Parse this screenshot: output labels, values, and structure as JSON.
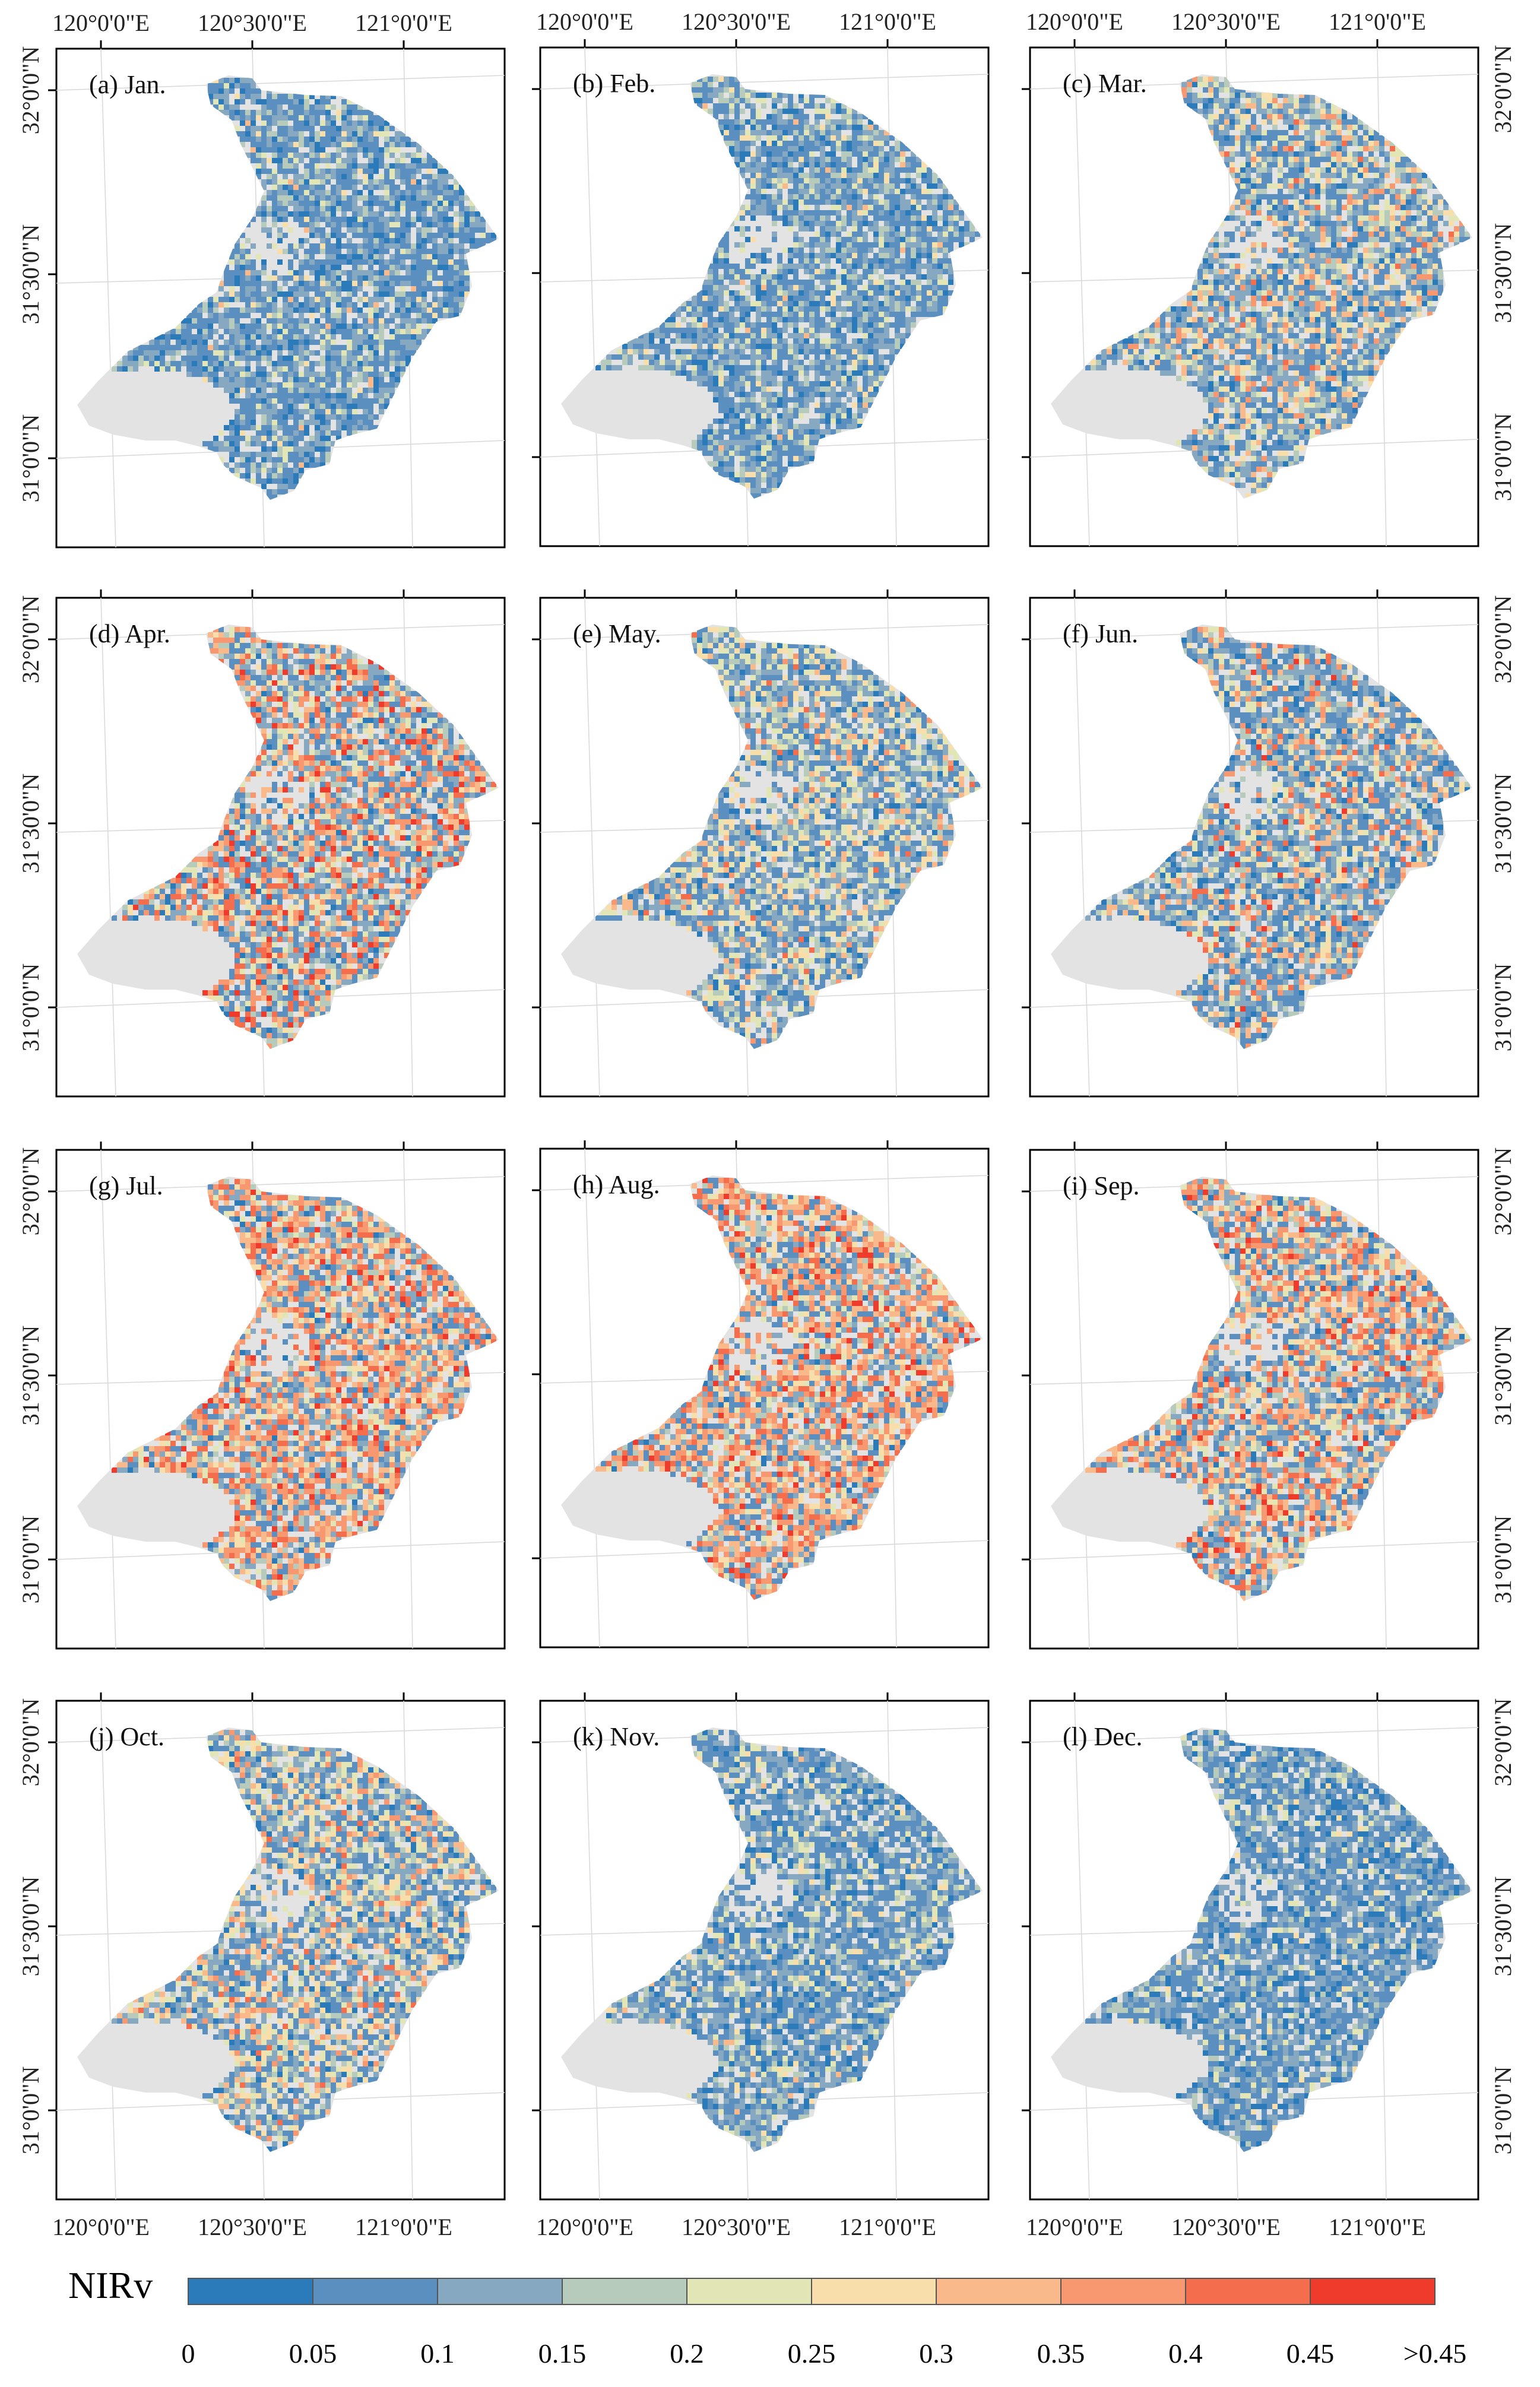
{
  "figure": {
    "top_lon_labels": [
      "120°0'0\"E",
      "120°30'0\"E",
      "121°0'0\"E"
    ],
    "bottom_lon_labels": [
      "120°0'0\"E",
      "120°30'0\"E",
      "121°0'0\"E"
    ],
    "lat_labels": [
      "32°0'0\"N",
      "31°30'0\"N",
      "31°0'0\"N"
    ],
    "background_color": "#e3e3e3",
    "panels": [
      {
        "id": "a",
        "title": "(a) Jan.",
        "month": "Jan",
        "palette_weights": [
          0.12,
          0.42,
          0.28,
          0.1,
          0.05,
          0.02,
          0.01,
          0.0,
          0.0,
          0.0
        ]
      },
      {
        "id": "b",
        "title": "(b) Feb.",
        "month": "Feb",
        "palette_weights": [
          0.1,
          0.38,
          0.28,
          0.13,
          0.07,
          0.03,
          0.01,
          0.0,
          0.0,
          0.0
        ]
      },
      {
        "id": "c",
        "title": "(c) Mar.",
        "month": "Mar",
        "palette_weights": [
          0.06,
          0.28,
          0.22,
          0.12,
          0.1,
          0.08,
          0.08,
          0.05,
          0.01,
          0.0
        ]
      },
      {
        "id": "d",
        "title": "(d) Apr.",
        "month": "Apr",
        "palette_weights": [
          0.04,
          0.22,
          0.16,
          0.08,
          0.07,
          0.06,
          0.1,
          0.12,
          0.1,
          0.05
        ]
      },
      {
        "id": "e",
        "title": "(e) May.",
        "month": "May",
        "palette_weights": [
          0.05,
          0.28,
          0.2,
          0.12,
          0.14,
          0.1,
          0.07,
          0.03,
          0.01,
          0.0
        ]
      },
      {
        "id": "f",
        "title": "(f) Jun.",
        "month": "Jun",
        "palette_weights": [
          0.06,
          0.3,
          0.22,
          0.1,
          0.07,
          0.06,
          0.08,
          0.07,
          0.03,
          0.01
        ]
      },
      {
        "id": "g",
        "title": "(g) Jul.",
        "month": "Jul",
        "palette_weights": [
          0.02,
          0.16,
          0.12,
          0.06,
          0.06,
          0.08,
          0.16,
          0.2,
          0.1,
          0.04
        ]
      },
      {
        "id": "h",
        "title": "(h) Aug.",
        "month": "Aug",
        "palette_weights": [
          0.02,
          0.16,
          0.12,
          0.06,
          0.06,
          0.08,
          0.16,
          0.2,
          0.1,
          0.04
        ]
      },
      {
        "id": "i",
        "title": "(i) Sep.",
        "month": "Sep",
        "palette_weights": [
          0.03,
          0.2,
          0.14,
          0.07,
          0.07,
          0.09,
          0.14,
          0.15,
          0.08,
          0.03
        ]
      },
      {
        "id": "j",
        "title": "(j) Oct.",
        "month": "Oct",
        "palette_weights": [
          0.05,
          0.26,
          0.18,
          0.1,
          0.12,
          0.12,
          0.09,
          0.06,
          0.02,
          0.0
        ]
      },
      {
        "id": "k",
        "title": "(k) Nov.",
        "month": "Nov",
        "palette_weights": [
          0.1,
          0.4,
          0.26,
          0.12,
          0.08,
          0.03,
          0.01,
          0.0,
          0.0,
          0.0
        ]
      },
      {
        "id": "l",
        "title": "(l) Dec.",
        "month": "Dec",
        "palette_weights": [
          0.14,
          0.44,
          0.26,
          0.09,
          0.05,
          0.02,
          0.0,
          0.0,
          0.0,
          0.0
        ]
      }
    ]
  },
  "legend": {
    "title": "NIRv",
    "colors": [
      "#2b7bba",
      "#5b8fc0",
      "#86a8c0",
      "#b7cbbc",
      "#e2e6b7",
      "#f7deaa",
      "#f9b98a",
      "#f79870",
      "#f46d4c",
      "#ef3b2c"
    ],
    "labels": [
      "0",
      "0.05",
      "0.1",
      "0.15",
      "0.2",
      "0.25",
      "0.3",
      "0.35",
      "0.4",
      "0.45",
      ">0.45"
    ]
  }
}
